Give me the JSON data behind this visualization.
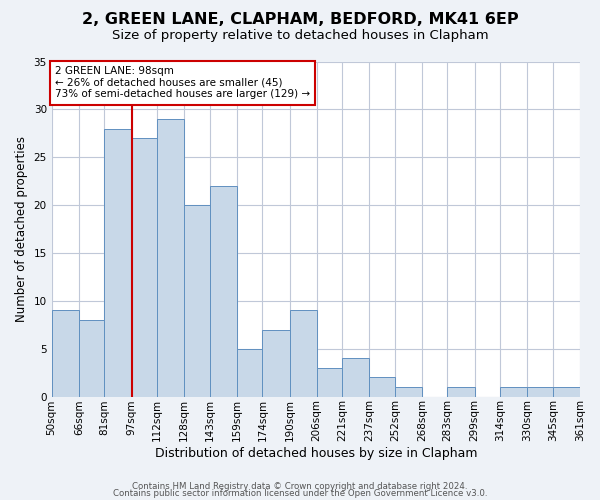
{
  "title": "2, GREEN LANE, CLAPHAM, BEDFORD, MK41 6EP",
  "subtitle": "Size of property relative to detached houses in Clapham",
  "xlabel": "Distribution of detached houses by size in Clapham",
  "ylabel": "Number of detached properties",
  "bin_labels": [
    "50sqm",
    "66sqm",
    "81sqm",
    "97sqm",
    "112sqm",
    "128sqm",
    "143sqm",
    "159sqm",
    "174sqm",
    "190sqm",
    "206sqm",
    "221sqm",
    "237sqm",
    "252sqm",
    "268sqm",
    "283sqm",
    "299sqm",
    "314sqm",
    "330sqm",
    "345sqm",
    "361sqm"
  ],
  "bin_edges": [
    50,
    66,
    81,
    97,
    112,
    128,
    143,
    159,
    174,
    190,
    206,
    221,
    237,
    252,
    268,
    283,
    299,
    314,
    330,
    345,
    361
  ],
  "bar_heights": [
    9,
    8,
    28,
    27,
    29,
    20,
    22,
    5,
    7,
    9,
    3,
    4,
    2,
    1,
    0,
    1,
    0,
    1,
    1,
    1
  ],
  "bar_color": "#c8d8e8",
  "bar_edge_color": "#6090c0",
  "reference_line_x": 97,
  "reference_line_color": "#cc0000",
  "ylim": [
    0,
    35
  ],
  "yticks": [
    0,
    5,
    10,
    15,
    20,
    25,
    30,
    35
  ],
  "annotation_text": "2 GREEN LANE: 98sqm\n← 26% of detached houses are smaller (45)\n73% of semi-detached houses are larger (129) →",
  "annotation_box_color": "#ffffff",
  "annotation_box_edge_color": "#cc0000",
  "footer_line1": "Contains HM Land Registry data © Crown copyright and database right 2024.",
  "footer_line2": "Contains public sector information licensed under the Open Government Licence v3.0.",
  "background_color": "#eef2f7",
  "plot_background_color": "#ffffff",
  "grid_color": "#c0c8d8",
  "title_fontsize": 11.5,
  "subtitle_fontsize": 9.5,
  "xlabel_fontsize": 9,
  "ylabel_fontsize": 8.5,
  "tick_fontsize": 7.5,
  "footer_fontsize": 6.2
}
